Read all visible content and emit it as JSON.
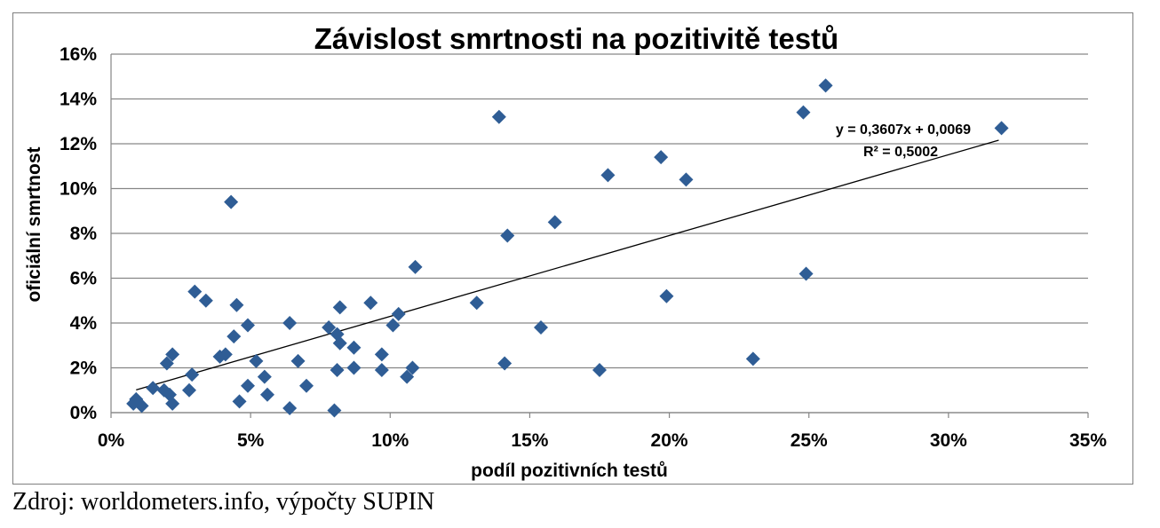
{
  "source_note": "Zdroj: worldometers.info, výpočty SUPIN",
  "chart_data": {
    "type": "scatter",
    "title": "Závislost smrtnosti na pozitivitě testů",
    "xlabel": "podíl pozitivních testů",
    "ylabel": "oficiální smrtnost",
    "xlim": [
      0,
      0.35
    ],
    "ylim": [
      0,
      0.16
    ],
    "x_ticks": [
      0,
      0.05,
      0.1,
      0.15,
      0.2,
      0.25,
      0.3,
      0.35
    ],
    "x_tick_labels": [
      "0%",
      "5%",
      "10%",
      "15%",
      "20%",
      "25%",
      "30%",
      "35%"
    ],
    "y_ticks": [
      0,
      0.02,
      0.04,
      0.06,
      0.08,
      0.1,
      0.12,
      0.14,
      0.16
    ],
    "y_tick_labels": [
      "0%",
      "2%",
      "4%",
      "6%",
      "8%",
      "10%",
      "12%",
      "14%",
      "16%"
    ],
    "grid": "horizontal",
    "marker_color": "#2f5d95",
    "trendline": {
      "slope": 0.3607,
      "intercept": 0.0069,
      "x_range": [
        0.009,
        0.318
      ],
      "equation": "y = 0,3607x  + 0,0069",
      "r_squared": "R² = 0,5002"
    },
    "points": [
      [
        0.008,
        0.004
      ],
      [
        0.009,
        0.006
      ],
      [
        0.011,
        0.003
      ],
      [
        0.015,
        0.011
      ],
      [
        0.019,
        0.01
      ],
      [
        0.02,
        0.022
      ],
      [
        0.021,
        0.008
      ],
      [
        0.022,
        0.026
      ],
      [
        0.022,
        0.004
      ],
      [
        0.028,
        0.01
      ],
      [
        0.029,
        0.017
      ],
      [
        0.03,
        0.054
      ],
      [
        0.034,
        0.05
      ],
      [
        0.039,
        0.025
      ],
      [
        0.041,
        0.026
      ],
      [
        0.043,
        0.094
      ],
      [
        0.044,
        0.034
      ],
      [
        0.045,
        0.048
      ],
      [
        0.046,
        0.005
      ],
      [
        0.049,
        0.039
      ],
      [
        0.049,
        0.012
      ],
      [
        0.052,
        0.023
      ],
      [
        0.055,
        0.016
      ],
      [
        0.056,
        0.008
      ],
      [
        0.064,
        0.04
      ],
      [
        0.064,
        0.002
      ],
      [
        0.067,
        0.023
      ],
      [
        0.07,
        0.012
      ],
      [
        0.078,
        0.038
      ],
      [
        0.08,
        0.001
      ],
      [
        0.081,
        0.035
      ],
      [
        0.081,
        0.019
      ],
      [
        0.082,
        0.047
      ],
      [
        0.082,
        0.031
      ],
      [
        0.087,
        0.029
      ],
      [
        0.087,
        0.02
      ],
      [
        0.093,
        0.049
      ],
      [
        0.097,
        0.026
      ],
      [
        0.097,
        0.019
      ],
      [
        0.101,
        0.039
      ],
      [
        0.103,
        0.044
      ],
      [
        0.106,
        0.016
      ],
      [
        0.108,
        0.02
      ],
      [
        0.109,
        0.065
      ],
      [
        0.131,
        0.049
      ],
      [
        0.139,
        0.132
      ],
      [
        0.141,
        0.022
      ],
      [
        0.142,
        0.079
      ],
      [
        0.154,
        0.038
      ],
      [
        0.159,
        0.085
      ],
      [
        0.175,
        0.019
      ],
      [
        0.178,
        0.106
      ],
      [
        0.197,
        0.114
      ],
      [
        0.199,
        0.052
      ],
      [
        0.206,
        0.104
      ],
      [
        0.23,
        0.024
      ],
      [
        0.248,
        0.134
      ],
      [
        0.249,
        0.062
      ],
      [
        0.256,
        0.146
      ],
      [
        0.319,
        0.127
      ]
    ]
  }
}
